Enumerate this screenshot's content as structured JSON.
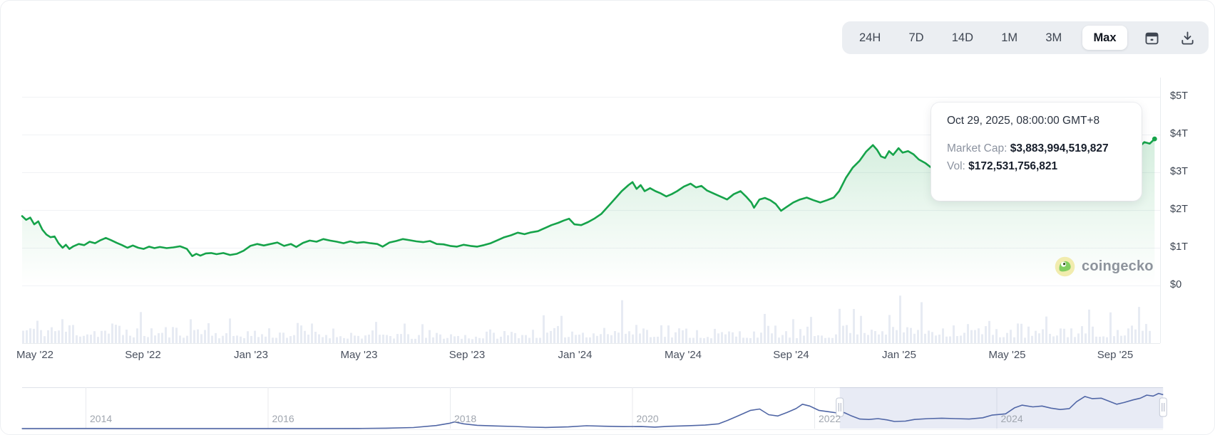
{
  "header": {
    "ranges": [
      "24H",
      "7D",
      "14D",
      "1M",
      "3M",
      "Max"
    ],
    "selected_range": "Max",
    "calendar_icon": "calendar-icon",
    "download_icon": "download-icon"
  },
  "tooltip": {
    "date": "Oct 29, 2025, 08:00:00 GMT+8",
    "market_cap_label": "Market Cap:",
    "market_cap_value": "$3,883,994,519,827",
    "vol_label": "Vol:",
    "vol_value": "$172,531,756,821"
  },
  "watermark": {
    "text": "coingecko",
    "icon": "coingecko-gecko-icon"
  },
  "chart_data": {
    "type": "area",
    "title": "Total cryptocurrency market cap, Max range selected",
    "series_name": "Market Cap",
    "y_axis_labels": [
      "$5T",
      "$4T",
      "$3T",
      "$2T",
      "$1T",
      "$0"
    ],
    "y_range_trillions": [
      0,
      5
    ],
    "x_axis_labels": [
      "May '22",
      "Sep '22",
      "Jan '23",
      "May '23",
      "Sep '23",
      "Jan '24",
      "May '24",
      "Sep '24",
      "Jan '25",
      "May '25",
      "Sep '25"
    ],
    "grid": "horizontal",
    "legend": "none",
    "hovered_point": {
      "date": "Oct 29, 2025, 08:00:00 GMT+8",
      "market_cap_usd": 3883994519827,
      "volume_usd": 172531756821
    },
    "points_months_after_may2022_vs_trillions": [
      [
        0,
        1.84
      ],
      [
        0.15,
        1.74
      ],
      [
        0.3,
        1.8
      ],
      [
        0.45,
        1.62
      ],
      [
        0.6,
        1.7
      ],
      [
        0.75,
        1.48
      ],
      [
        0.9,
        1.35
      ],
      [
        1.05,
        1.28
      ],
      [
        1.2,
        1.3
      ],
      [
        1.35,
        1.12
      ],
      [
        1.5,
        1.0
      ],
      [
        1.62,
        1.08
      ],
      [
        1.75,
        0.97
      ],
      [
        1.9,
        1.04
      ],
      [
        2.1,
        1.1
      ],
      [
        2.3,
        1.07
      ],
      [
        2.5,
        1.16
      ],
      [
        2.7,
        1.12
      ],
      [
        2.9,
        1.2
      ],
      [
        3.1,
        1.26
      ],
      [
        3.3,
        1.2
      ],
      [
        3.5,
        1.13
      ],
      [
        3.7,
        1.07
      ],
      [
        3.9,
        1.0
      ],
      [
        4.1,
        1.06
      ],
      [
        4.3,
        1.0
      ],
      [
        4.5,
        0.97
      ],
      [
        4.7,
        1.03
      ],
      [
        4.9,
        0.99
      ],
      [
        5.1,
        1.02
      ],
      [
        5.35,
        0.99
      ],
      [
        5.6,
        1.01
      ],
      [
        5.85,
        1.04
      ],
      [
        6.1,
        0.97
      ],
      [
        6.3,
        0.78
      ],
      [
        6.45,
        0.84
      ],
      [
        6.6,
        0.79
      ],
      [
        6.8,
        0.85
      ],
      [
        7.0,
        0.86
      ],
      [
        7.2,
        0.83
      ],
      [
        7.45,
        0.86
      ],
      [
        7.7,
        0.81
      ],
      [
        7.95,
        0.84
      ],
      [
        8.2,
        0.92
      ],
      [
        8.45,
        1.05
      ],
      [
        8.7,
        1.1
      ],
      [
        8.95,
        1.06
      ],
      [
        9.2,
        1.1
      ],
      [
        9.45,
        1.14
      ],
      [
        9.7,
        1.05
      ],
      [
        9.95,
        1.1
      ],
      [
        10.15,
        1.02
      ],
      [
        10.4,
        1.13
      ],
      [
        10.65,
        1.19
      ],
      [
        10.9,
        1.16
      ],
      [
        11.15,
        1.23
      ],
      [
        11.4,
        1.19
      ],
      [
        11.65,
        1.16
      ],
      [
        11.9,
        1.12
      ],
      [
        12.15,
        1.17
      ],
      [
        12.4,
        1.13
      ],
      [
        12.65,
        1.15
      ],
      [
        12.9,
        1.12
      ],
      [
        13.15,
        1.1
      ],
      [
        13.35,
        1.03
      ],
      [
        13.6,
        1.14
      ],
      [
        13.85,
        1.18
      ],
      [
        14.1,
        1.23
      ],
      [
        14.35,
        1.2
      ],
      [
        14.6,
        1.17
      ],
      [
        14.85,
        1.15
      ],
      [
        15.1,
        1.18
      ],
      [
        15.35,
        1.1
      ],
      [
        15.6,
        1.09
      ],
      [
        15.85,
        1.05
      ],
      [
        16.1,
        1.03
      ],
      [
        16.35,
        1.08
      ],
      [
        16.6,
        1.05
      ],
      [
        16.85,
        1.03
      ],
      [
        17.1,
        1.07
      ],
      [
        17.35,
        1.12
      ],
      [
        17.6,
        1.2
      ],
      [
        17.85,
        1.28
      ],
      [
        18.1,
        1.33
      ],
      [
        18.35,
        1.4
      ],
      [
        18.6,
        1.36
      ],
      [
        18.85,
        1.41
      ],
      [
        19.1,
        1.44
      ],
      [
        19.35,
        1.52
      ],
      [
        19.6,
        1.6
      ],
      [
        19.85,
        1.66
      ],
      [
        20.05,
        1.72
      ],
      [
        20.25,
        1.77
      ],
      [
        20.45,
        1.62
      ],
      [
        20.7,
        1.6
      ],
      [
        20.95,
        1.68
      ],
      [
        21.2,
        1.78
      ],
      [
        21.45,
        1.9
      ],
      [
        21.7,
        2.1
      ],
      [
        21.95,
        2.3
      ],
      [
        22.2,
        2.5
      ],
      [
        22.45,
        2.66
      ],
      [
        22.6,
        2.74
      ],
      [
        22.75,
        2.56
      ],
      [
        22.9,
        2.66
      ],
      [
        23.05,
        2.5
      ],
      [
        23.25,
        2.58
      ],
      [
        23.45,
        2.5
      ],
      [
        23.65,
        2.44
      ],
      [
        23.85,
        2.36
      ],
      [
        24.05,
        2.42
      ],
      [
        24.25,
        2.5
      ],
      [
        24.5,
        2.62
      ],
      [
        24.75,
        2.7
      ],
      [
        24.95,
        2.6
      ],
      [
        25.15,
        2.64
      ],
      [
        25.35,
        2.52
      ],
      [
        25.6,
        2.44
      ],
      [
        25.85,
        2.36
      ],
      [
        26.1,
        2.28
      ],
      [
        26.35,
        2.42
      ],
      [
        26.6,
        2.5
      ],
      [
        26.8,
        2.36
      ],
      [
        27.0,
        2.2
      ],
      [
        27.1,
        2.06
      ],
      [
        27.3,
        2.28
      ],
      [
        27.5,
        2.32
      ],
      [
        27.7,
        2.26
      ],
      [
        27.9,
        2.16
      ],
      [
        28.1,
        1.98
      ],
      [
        28.3,
        2.08
      ],
      [
        28.55,
        2.2
      ],
      [
        28.8,
        2.28
      ],
      [
        29.05,
        2.33
      ],
      [
        29.3,
        2.26
      ],
      [
        29.55,
        2.2
      ],
      [
        29.8,
        2.26
      ],
      [
        30.05,
        2.33
      ],
      [
        30.25,
        2.5
      ],
      [
        30.5,
        2.85
      ],
      [
        30.75,
        3.12
      ],
      [
        31.0,
        3.3
      ],
      [
        31.25,
        3.55
      ],
      [
        31.5,
        3.72
      ],
      [
        31.65,
        3.6
      ],
      [
        31.8,
        3.42
      ],
      [
        31.95,
        3.38
      ],
      [
        32.1,
        3.56
      ],
      [
        32.25,
        3.46
      ],
      [
        32.45,
        3.64
      ],
      [
        32.6,
        3.52
      ],
      [
        32.8,
        3.56
      ],
      [
        33.0,
        3.48
      ],
      [
        33.2,
        3.34
      ],
      [
        33.45,
        3.24
      ],
      [
        33.7,
        3.1
      ],
      [
        33.9,
        3.02
      ],
      [
        34.1,
        3.16
      ],
      [
        34.3,
        2.96
      ],
      [
        34.55,
        2.86
      ],
      [
        34.8,
        2.78
      ],
      [
        35.0,
        2.72
      ],
      [
        35.2,
        2.5
      ],
      [
        35.45,
        2.66
      ],
      [
        35.7,
        2.84
      ],
      [
        35.95,
        2.96
      ],
      [
        36.2,
        3.12
      ],
      [
        36.45,
        3.3
      ],
      [
        36.7,
        3.34
      ],
      [
        36.95,
        3.28
      ],
      [
        37.2,
        3.4
      ],
      [
        37.45,
        3.26
      ],
      [
        37.7,
        3.32
      ],
      [
        37.95,
        3.44
      ],
      [
        38.2,
        3.62
      ],
      [
        38.45,
        3.8
      ],
      [
        38.7,
        3.9
      ],
      [
        38.9,
        4.04
      ],
      [
        39.1,
        3.86
      ],
      [
        39.35,
        3.96
      ],
      [
        39.6,
        3.84
      ],
      [
        39.85,
        3.9
      ],
      [
        40.1,
        3.98
      ],
      [
        40.35,
        4.08
      ],
      [
        40.55,
        4.15
      ],
      [
        40.75,
        3.98
      ],
      [
        40.95,
        3.7
      ],
      [
        41.15,
        3.82
      ],
      [
        41.35,
        3.66
      ],
      [
        41.55,
        3.8
      ],
      [
        41.75,
        3.76
      ],
      [
        41.93,
        3.884
      ]
    ],
    "volume_envelope_monthly": [
      0.55,
      0.6,
      0.45,
      0.48,
      0.42,
      0.38,
      0.6,
      0.32,
      0.33,
      0.35,
      0.42,
      0.32,
      0.27,
      0.28,
      0.24,
      0.26,
      0.21,
      0.27,
      0.33,
      0.36,
      0.42,
      0.45,
      0.6,
      0.45,
      0.36,
      0.31,
      0.31,
      0.4,
      0.31,
      0.34,
      0.75,
      0.7,
      0.65,
      0.6,
      0.52,
      0.48,
      0.42,
      0.36,
      0.44,
      0.48,
      0.44,
      0.5
    ],
    "navigator": {
      "year_labels": [
        "2014",
        "2016",
        "2018",
        "2020",
        "2022",
        "2024"
      ],
      "selected_range_years": [
        2022.28,
        2025.83
      ],
      "points_year_vs_trillions": [
        [
          2013.3,
          0.01
        ],
        [
          2014.0,
          0.014
        ],
        [
          2014.4,
          0.008
        ],
        [
          2015.0,
          0.005
        ],
        [
          2015.5,
          0.005
        ],
        [
          2016.0,
          0.009
        ],
        [
          2016.5,
          0.012
        ],
        [
          2017.0,
          0.02
        ],
        [
          2017.3,
          0.05
        ],
        [
          2017.6,
          0.12
        ],
        [
          2017.85,
          0.35
        ],
        [
          2018.0,
          0.62
        ],
        [
          2018.05,
          0.77
        ],
        [
          2018.15,
          0.55
        ],
        [
          2018.3,
          0.38
        ],
        [
          2018.5,
          0.3
        ],
        [
          2018.7,
          0.25
        ],
        [
          2018.9,
          0.16
        ],
        [
          2019.05,
          0.13
        ],
        [
          2019.3,
          0.2
        ],
        [
          2019.5,
          0.33
        ],
        [
          2019.7,
          0.27
        ],
        [
          2019.9,
          0.23
        ],
        [
          2020.1,
          0.24
        ],
        [
          2020.25,
          0.17
        ],
        [
          2020.4,
          0.26
        ],
        [
          2020.6,
          0.32
        ],
        [
          2020.8,
          0.4
        ],
        [
          2020.95,
          0.55
        ],
        [
          2021.05,
          0.95
        ],
        [
          2021.15,
          1.4
        ],
        [
          2021.3,
          2.1
        ],
        [
          2021.4,
          2.25
        ],
        [
          2021.5,
          1.6
        ],
        [
          2021.6,
          1.45
        ],
        [
          2021.7,
          1.85
        ],
        [
          2021.8,
          2.3
        ],
        [
          2021.87,
          2.8
        ],
        [
          2021.95,
          2.6
        ],
        [
          2022.05,
          2.1
        ],
        [
          2022.15,
          1.95
        ],
        [
          2022.25,
          1.8
        ],
        [
          2022.33,
          1.84
        ],
        [
          2022.4,
          1.5
        ],
        [
          2022.5,
          1.1
        ],
        [
          2022.6,
          1.05
        ],
        [
          2022.7,
          1.15
        ],
        [
          2022.8,
          1.0
        ],
        [
          2022.88,
          0.82
        ],
        [
          2023.0,
          0.86
        ],
        [
          2023.1,
          1.05
        ],
        [
          2023.25,
          1.15
        ],
        [
          2023.4,
          1.2
        ],
        [
          2023.55,
          1.15
        ],
        [
          2023.7,
          1.1
        ],
        [
          2023.85,
          1.25
        ],
        [
          2023.95,
          1.55
        ],
        [
          2024.1,
          1.7
        ],
        [
          2024.2,
          2.4
        ],
        [
          2024.28,
          2.7
        ],
        [
          2024.4,
          2.5
        ],
        [
          2024.5,
          2.6
        ],
        [
          2024.6,
          2.35
        ],
        [
          2024.7,
          2.2
        ],
        [
          2024.8,
          2.3
        ],
        [
          2024.88,
          3.1
        ],
        [
          2024.97,
          3.7
        ],
        [
          2025.05,
          3.45
        ],
        [
          2025.15,
          3.5
        ],
        [
          2025.25,
          3.1
        ],
        [
          2025.32,
          2.8
        ],
        [
          2025.4,
          3.0
        ],
        [
          2025.5,
          3.3
        ],
        [
          2025.58,
          3.5
        ],
        [
          2025.65,
          3.85
        ],
        [
          2025.72,
          3.75
        ],
        [
          2025.78,
          4.05
        ],
        [
          2025.83,
          3.9
        ]
      ]
    },
    "colors": {
      "line": "#16a34a",
      "area_top": "rgba(22,163,74,0.20)",
      "volume_bars": "#e7ebf3",
      "navigator_line": "#5066a5",
      "navigator_selection": "rgba(93,112,185,0.14)",
      "gridline": "#f0f2f5"
    }
  }
}
